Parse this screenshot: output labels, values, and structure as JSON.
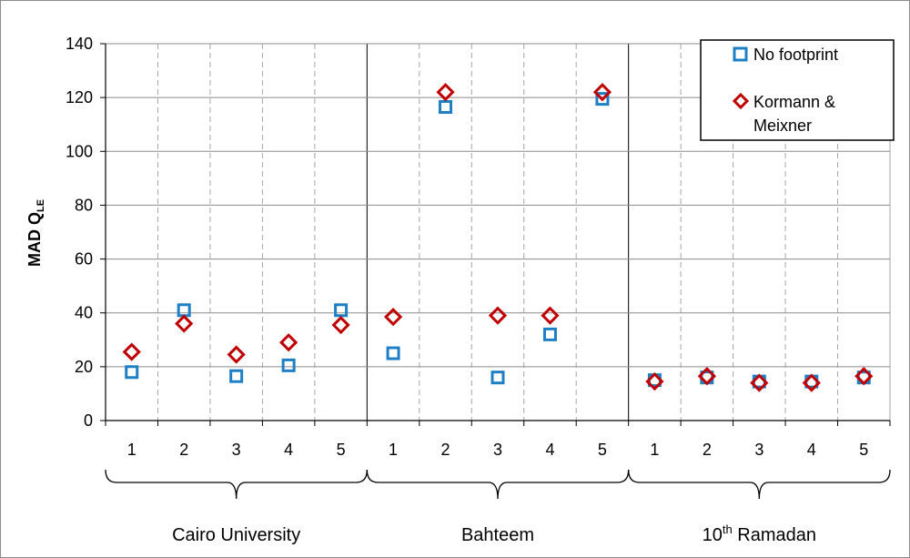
{
  "chart_data": {
    "type": "scatter",
    "ylabel": "MAD Q",
    "ylabel_sub": "LE",
    "ylim": [
      0,
      140
    ],
    "yticks": [
      0,
      20,
      40,
      60,
      80,
      100,
      120,
      140
    ],
    "grid": {
      "y": "solid",
      "x": "dashed"
    },
    "legend_position": "top-right",
    "categories": [
      "1",
      "2",
      "3",
      "4",
      "5",
      "1",
      "2",
      "3",
      "4",
      "5",
      "1",
      "2",
      "3",
      "4",
      "5"
    ],
    "groups": [
      {
        "label": "Cairo University",
        "label_sup": ""
      },
      {
        "label": "Bahteem",
        "label_sup": ""
      },
      {
        "label": "10",
        "label_sup": "th",
        "label_rest": " Ramadan"
      }
    ],
    "series": [
      {
        "name": "No footprint",
        "marker": "square",
        "color": "#1f7fc4",
        "values": [
          18,
          41,
          16.5,
          20.5,
          41,
          25,
          116.5,
          16,
          32,
          119.5,
          15,
          16,
          14.5,
          14.5,
          16
        ]
      },
      {
        "name": "Kormann & Meixner",
        "marker": "diamond",
        "color": "#c00000",
        "values": [
          25.5,
          36,
          24.5,
          29,
          35.5,
          38.5,
          122,
          39,
          39,
          122,
          14.5,
          16.5,
          14,
          14,
          16.5
        ]
      }
    ]
  }
}
